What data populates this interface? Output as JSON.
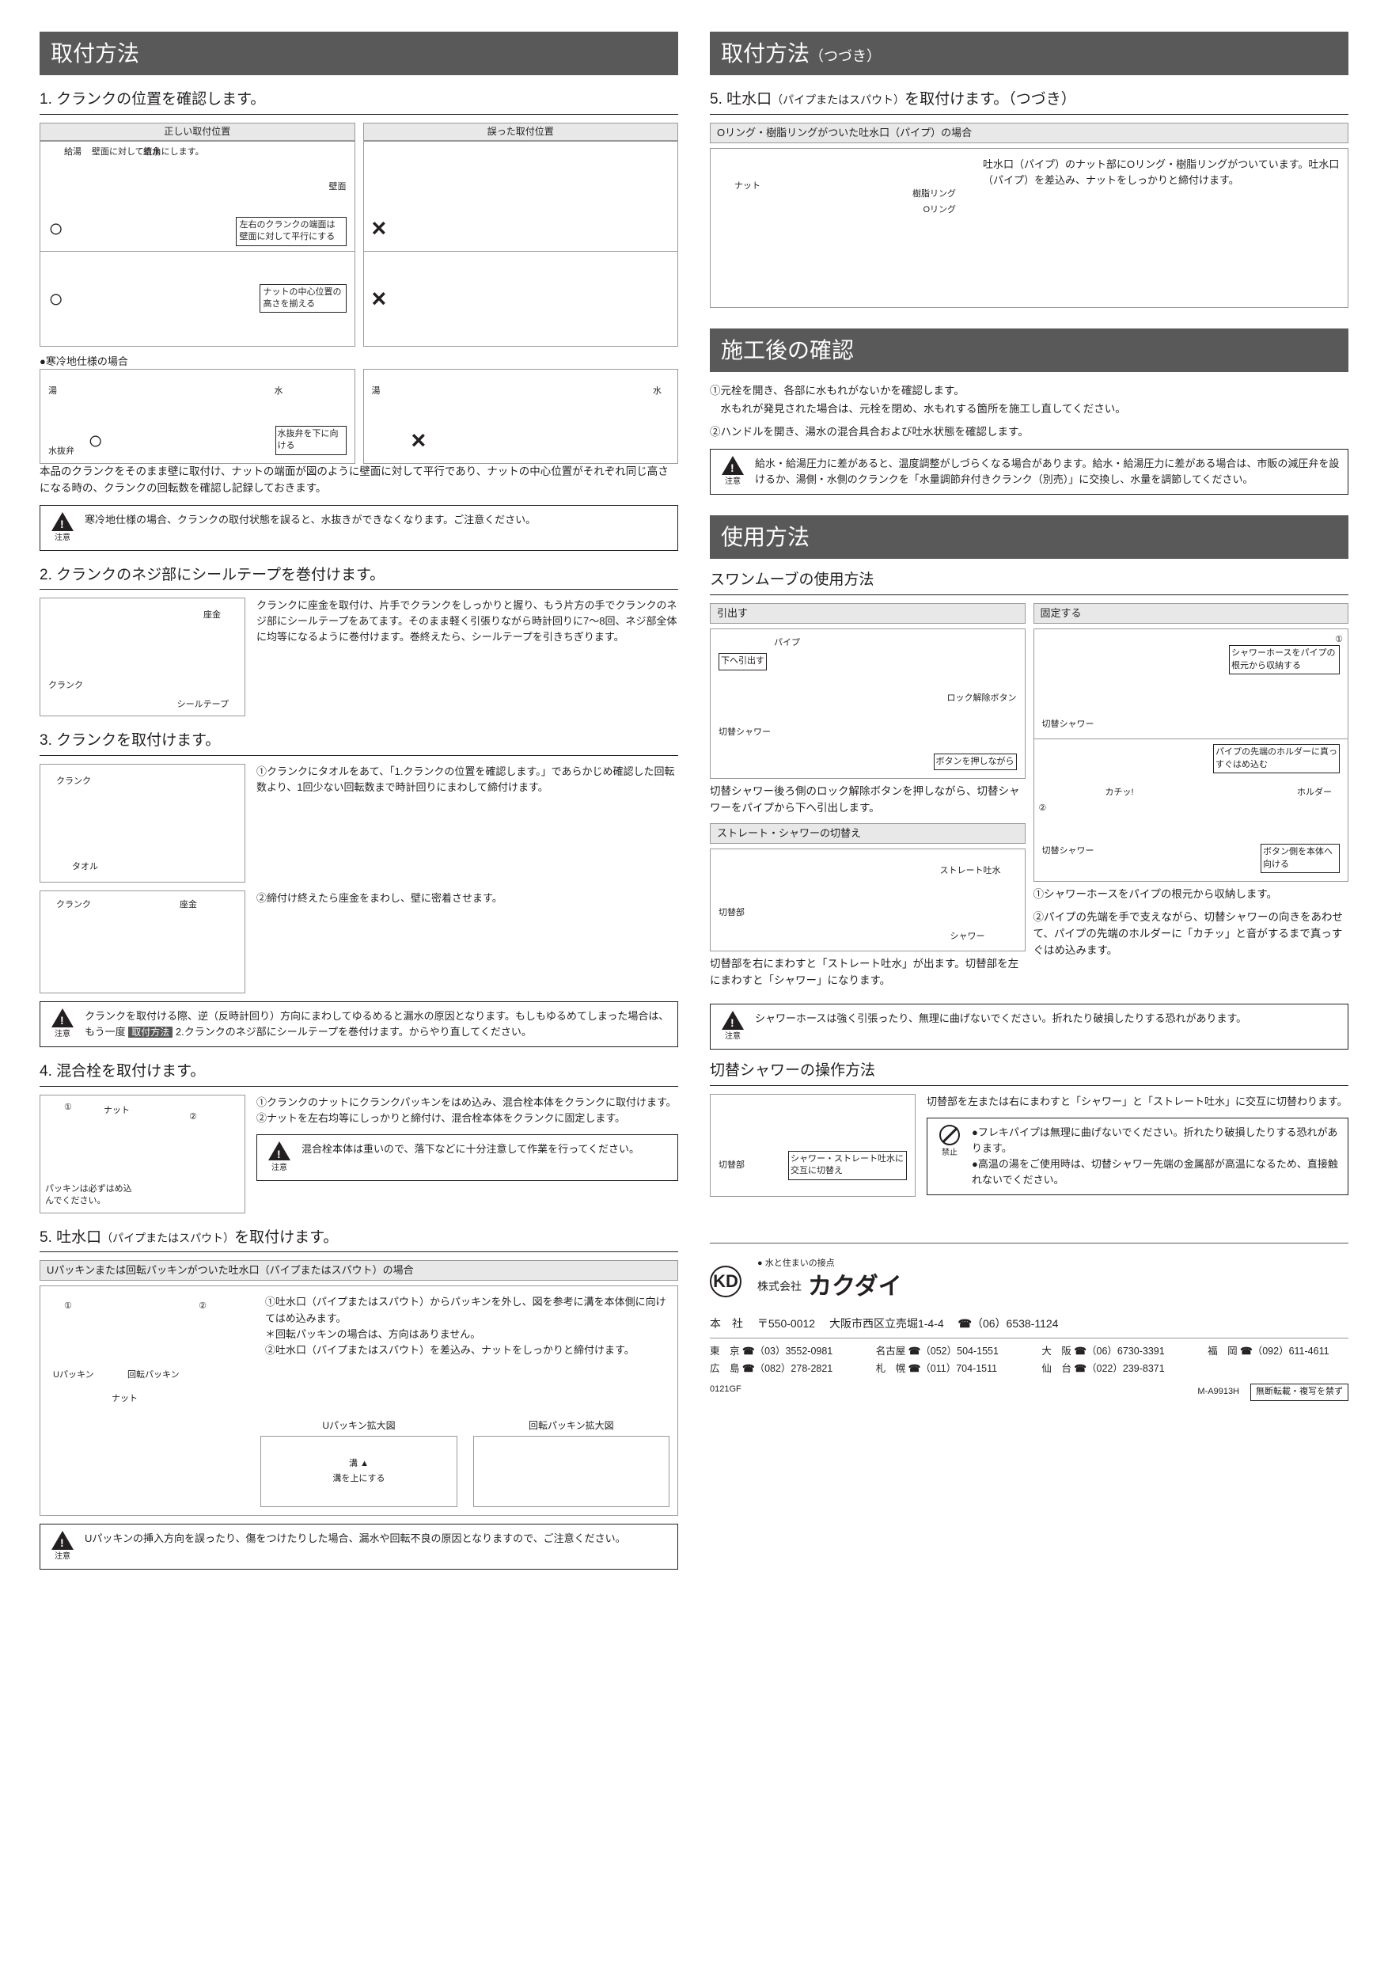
{
  "left": {
    "header": "取付方法",
    "s1": {
      "title": "1. クランクの位置を確認します。",
      "cap_correct": "正しい取付位置",
      "cap_wrong": "誤った取付位置",
      "lbl_hotwater": "給湯",
      "lbl_coldwater": "給水",
      "lbl_wallperp": "壁面に対して直角にします。",
      "lbl_wallface": "壁面",
      "lbl_parallel": "左右のクランクの端面は壁面に対して平行にする",
      "lbl_nutcenter": "ナットの中心位置の高さを揃える",
      "cold_header": "●寒冷地仕様の場合",
      "lbl_hot": "湯",
      "lbl_cold": "水",
      "lbl_drainvalve": "水抜弁",
      "lbl_draindown": "水抜弁を下に向ける",
      "text": "本品のクランクをそのまま壁に取付け、ナットの端面が図のように壁面に対して平行であり、ナットの中心位置がそれぞれ同じ高さになる時の、クランクの回転数を確認し記録しておきます。",
      "caution": "寒冷地仕様の場合、クランクの取付状態を誤ると、水抜きができなくなります。ご注意ください。",
      "caution_label": "注意"
    },
    "s2": {
      "title": "2. クランクのネジ部にシールテープを巻付けます。",
      "lbl_washer": "座金",
      "lbl_crank": "クランク",
      "lbl_tape": "シールテープ",
      "text": "クランクに座金を取付け、片手でクランクをしっかりと握り、もう片方の手でクランクのネジ部にシールテープをあてます。そのまま軽く引張りながら時計回りに7〜8回、ネジ部全体に均等になるように巻付けます。巻終えたら、シールテープを引きちぎります。"
    },
    "s3": {
      "title": "3. クランクを取付けます。",
      "lbl_crank": "クランク",
      "lbl_towel": "タオル",
      "lbl_washer": "座金",
      "text1": "①クランクにタオルをあて、「1.クランクの位置を確認します。」であらかじめ確認した回転数より、1回少ない回転数まで時計回りにまわして締付けます。",
      "text2": "②締付け終えたら座金をまわし、壁に密着させます。",
      "caution": "クランクを取付ける際、逆（反時計回り）方向にまわしてゆるめると漏水の原因となります。もしもゆるめてしまった場合は、もう一度",
      "caution_tag": "取付方法",
      "caution2": "2.クランクのネジ部にシールテープを巻付けます。からやり直してください。",
      "caution_label": "注意"
    },
    "s4": {
      "title": "4. 混合栓を取付けます。",
      "lbl_nut": "ナット",
      "lbl_packing": "パッキンは必ずはめ込んでください。",
      "text1": "①クランクのナットにクランクパッキンをはめ込み、混合栓本体をクランクに取付けます。",
      "text2": "②ナットを左右均等にしっかりと締付け、混合栓本体をクランクに固定します。",
      "caution": "混合栓本体は重いので、落下などに十分注意して作業を行ってください。",
      "caution_label": "注意"
    },
    "s5": {
      "title_a": "5. 吐水口",
      "title_b": "（パイプまたはスパウト）",
      "title_c": "を取付けます。",
      "sub": "Uパッキンまたは回転パッキンがついた吐水口（パイプまたはスパウト）の場合",
      "text1": "①吐水口（パイプまたはスパウト）からパッキンを外し、図を参考に溝を本体側に向けてはめ込みます。",
      "text1b": "＊回転パッキンの場合は、方向はありません。",
      "text2": "②吐水口（パイプまたはスパウト）を差込み、ナットをしっかりと締付けます。",
      "lbl_upacking": "Uパッキン",
      "lbl_rotpacking": "回転パッキン",
      "lbl_nut": "ナット",
      "enlarge_u": "Uパッキン拡大図",
      "enlarge_r": "回転パッキン拡大図",
      "lbl_groove": "溝",
      "lbl_grooveup": "溝を上にする",
      "caution": "Uパッキンの挿入方向を誤ったり、傷をつけたりした場合、漏水や回転不良の原因となりますので、ご注意ください。",
      "caution_label": "注意"
    }
  },
  "right": {
    "header1_a": "取付方法",
    "header1_b": "（つづき）",
    "s5c": {
      "title_a": "5. 吐水口",
      "title_b": "（パイプまたはスパウト）",
      "title_c": "を取付けます。（つづき）",
      "sub": "Oリング・樹脂リングがついた吐水口（パイプ）の場合",
      "text": "吐水口（パイプ）のナット部にOリング・樹脂リングがついています。吐水口（パイプ）を差込み、ナットをしっかりと締付けます。",
      "lbl_nut": "ナット",
      "lbl_resin": "樹脂リング",
      "lbl_oring": "Oリング"
    },
    "header2": "施工後の確認",
    "check": {
      "text1": "①元栓を開き、各部に水もれがないかを確認します。",
      "text1b": "　水もれが発見された場合は、元栓を閉め、水もれする箇所を施工し直してください。",
      "text2": "②ハンドルを開き、湯水の混合具合および吐水状態を確認します。",
      "caution": "給水・給湯圧力に差があると、温度調整がしづらくなる場合があります。給水・給湯圧力に差がある場合は、市販の減圧弁を設けるか、湯側・水側のクランクを「水量調節弁付きクランク（別売）」に交換し、水量を調節してください。",
      "caution_label": "注意"
    },
    "header3": "使用方法",
    "swan": {
      "title": "スワンムーブの使用方法",
      "sub_pull": "引出す",
      "sub_fix": "固定する",
      "lbl_pipe": "パイプ",
      "lbl_pulldown": "下へ引出す",
      "lbl_switchshower": "切替シャワー",
      "lbl_lockbtn": "ロック解除ボタン",
      "lbl_pressbtn": "ボタンを押しながら",
      "pull_text": "切替シャワー後ろ側のロック解除ボタンを押しながら、切替シャワーをパイプから下へ引出します。",
      "fix_t1": "シャワーホースをパイプの根元から収納する",
      "fix_t2": "パイプの先端のホルダーに真っすぐはめ込む",
      "lbl_holder": "ホルダー",
      "lbl_click": "カチッ!",
      "lbl_btnbody": "ボタン側を本体へ向ける",
      "fix_text1": "①シャワーホースをパイプの根元から収納します。",
      "fix_text2": "②パイプの先端を手で支えながら、切替シャワーの向きをあわせて、パイプの先端のホルダーに「カチッ」と音がするまで真っすぐはめ込みます。",
      "sub_switch": "ストレート・シャワーの切替え",
      "lbl_switchpart": "切替部",
      "lbl_straight": "ストレート吐水",
      "lbl_shower": "シャワー",
      "switch_text": "切替部を右にまわすと「ストレート吐水」が出ます。切替部を左にまわすと「シャワー」になります。",
      "caution": "シャワーホースは強く引張ったり、無理に曲げないでください。折れたり破損したりする恐れがあります。",
      "caution_label": "注意"
    },
    "op": {
      "title": "切替シャワーの操作方法",
      "lbl_switchpart": "切替部",
      "lbl_alt": "シャワー・ストレート吐水に交互に切替え",
      "text": "切替部を左または右にまわすと「シャワー」と「ストレート吐水」に交互に切替わります。",
      "prohibit1": "●フレキパイプは無理に曲げないでください。折れたり破損したりする恐れがあります。",
      "prohibit2": "●高温の湯をご使用時は、切替シャワー先端の金属部が高温になるため、直接触れないでください。",
      "prohibit_label": "禁止"
    }
  },
  "footer": {
    "tagline": "水と住まいの接点",
    "company_pre": "株式会社",
    "company": "カクダイ",
    "hq_label": "本　社",
    "hq_zip": "〒550-0012",
    "hq_addr": "大阪市西区立売堀1-4-4",
    "hq_tel": "（06）6538-1124",
    "branches": [
      {
        "city": "東　京",
        "tel": "（03）3552-0981"
      },
      {
        "city": "名古屋",
        "tel": "（052）504-1551"
      },
      {
        "city": "大　阪",
        "tel": "（06）6730-3391"
      },
      {
        "city": "福　岡",
        "tel": "（092）611-4611"
      },
      {
        "city": "広　島",
        "tel": "（082）278-2821"
      },
      {
        "city": "札　幌",
        "tel": "（011）704-1511"
      },
      {
        "city": "仙　台",
        "tel": "（022）239-8371"
      }
    ],
    "code_left": "0121GF",
    "code_right": "M-A9913H",
    "nocopy": "無断転載・複写を禁ず"
  }
}
